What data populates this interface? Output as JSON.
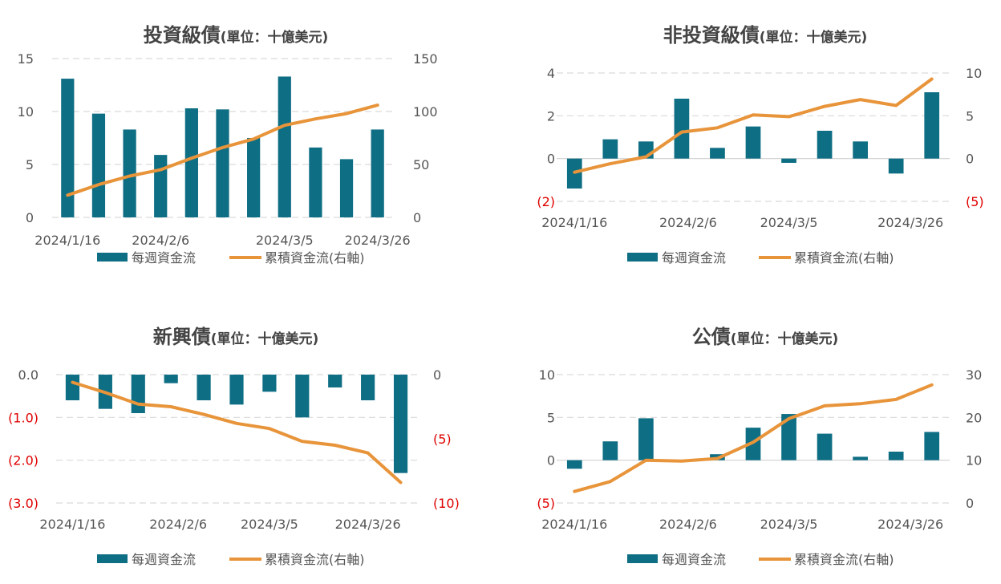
{
  "colors": {
    "bar": "#0e6e84",
    "line": "#e8943a",
    "grid": "#d9d9d9",
    "negative_tick": "#e00000"
  },
  "charts": [
    {
      "key": "c1",
      "title_main": "投資級債",
      "title_sub": "(單位：十億美元)",
      "legend_bar": "每週資金流",
      "legend_line": "累積資金流(右軸)",
      "x_tick_labels": [
        "2024/1/16",
        "2024/2/6",
        "2024/3/5",
        "2024/3/26"
      ],
      "left_ticks": [
        "15",
        "10",
        "5",
        "0"
      ],
      "right_ticks": [
        "150",
        "100",
        "50",
        "0"
      ]
    },
    {
      "key": "c2",
      "title_main": "非投資級債",
      "title_sub": "(單位：十億美元)",
      "legend_bar": "每週資金流",
      "legend_line": "累積資金流(右軸)",
      "x_tick_labels": [
        "2024/1/16",
        "2024/2/6",
        "2024/3/5",
        "2024/3/26"
      ],
      "left_ticks": [
        "4",
        "2",
        "0",
        "(2)"
      ],
      "right_ticks": [
        "10",
        "5",
        "0",
        "(5)"
      ]
    },
    {
      "key": "c3",
      "title_main": "新興債",
      "title_sub": "(單位：十億美元)",
      "legend_bar": "每週資金流",
      "legend_line": "累積資金流(右軸)",
      "x_tick_labels": [
        "2024/1/16",
        "2024/2/6",
        "2024/3/5",
        "2024/3/26"
      ],
      "left_ticks": [
        "0.0",
        "(1.0)",
        "(2.0)",
        "(3.0)"
      ],
      "right_ticks": [
        "0",
        "(5)",
        "(10)"
      ]
    },
    {
      "key": "c4",
      "title_main": "公債",
      "title_sub": "(單位：十億美元)",
      "legend_bar": "每週資金流",
      "legend_line": "累積資金流(右軸)",
      "x_tick_labels": [
        "2024/1/16",
        "2024/2/6",
        "2024/3/5",
        "2024/3/26"
      ],
      "left_ticks": [
        "10",
        "5",
        "0",
        "(5)"
      ],
      "right_ticks": [
        "30",
        "20",
        "10",
        "0"
      ]
    }
  ],
  "chart_data": [
    {
      "type": "bar",
      "title": "投資級債(單位：十億美元)",
      "x_tick_labels": [
        "2024/1/16",
        "2024/2/6",
        "2024/3/5",
        "2024/3/26"
      ],
      "series": [
        {
          "name": "每週資金流",
          "axis": "left",
          "type": "bar",
          "values": [
            13.1,
            9.8,
            8.3,
            5.9,
            10.3,
            10.2,
            7.5,
            13.3,
            6.6,
            5.5,
            8.3
          ]
        },
        {
          "name": "累積資金流(右軸)",
          "axis": "right",
          "type": "line",
          "values": [
            21,
            31,
            39,
            45,
            56,
            66,
            74,
            87,
            93,
            98,
            106
          ]
        }
      ],
      "ylim_left": [
        0,
        15
      ],
      "ylim_right": [
        0,
        150
      ],
      "grid": true,
      "legend": "bottom"
    },
    {
      "type": "bar",
      "title": "非投資級債(單位：十億美元)",
      "x_tick_labels": [
        "2024/1/16",
        "2024/2/6",
        "2024/3/5",
        "2024/3/26"
      ],
      "series": [
        {
          "name": "每週資金流",
          "axis": "left",
          "type": "bar",
          "values": [
            -1.4,
            0.9,
            0.8,
            2.8,
            0.5,
            1.5,
            -0.2,
            1.3,
            0.8,
            -0.7,
            3.1
          ]
        },
        {
          "name": "累積資金流(右軸)",
          "axis": "right",
          "type": "line",
          "values": [
            -1.6,
            -0.6,
            0.2,
            3.1,
            3.6,
            5.1,
            4.9,
            6.1,
            6.9,
            6.2,
            9.3
          ]
        }
      ],
      "ylim_left": [
        -2,
        4
      ],
      "ylim_right": [
        -5,
        10
      ],
      "grid": true,
      "legend": "bottom"
    },
    {
      "type": "bar",
      "title": "新興債(單位：十億美元)",
      "x_tick_labels": [
        "2024/1/16",
        "2024/2/6",
        "2024/3/5",
        "2024/3/26"
      ],
      "series": [
        {
          "name": "每週資金流",
          "axis": "left",
          "type": "bar",
          "values": [
            -0.6,
            -0.8,
            -0.9,
            -0.2,
            -0.6,
            -0.7,
            -0.4,
            -1.0,
            -0.3,
            -0.6,
            -2.3
          ]
        },
        {
          "name": "累積資金流(右軸)",
          "axis": "right",
          "type": "line",
          "values": [
            -0.6,
            -1.4,
            -2.3,
            -2.5,
            -3.1,
            -3.8,
            -4.2,
            -5.2,
            -5.5,
            -6.1,
            -8.4
          ]
        }
      ],
      "ylim_left": [
        -3,
        0
      ],
      "ylim_right": [
        -10,
        0
      ],
      "grid": true,
      "legend": "bottom"
    },
    {
      "type": "bar",
      "title": "公債(單位：十億美元)",
      "x_tick_labels": [
        "2024/1/16",
        "2024/2/6",
        "2024/3/5",
        "2024/3/26"
      ],
      "series": [
        {
          "name": "每週資金流",
          "axis": "left",
          "type": "bar",
          "values": [
            -1.0,
            2.2,
            4.9,
            0.0,
            0.7,
            3.8,
            5.4,
            3.1,
            0.4,
            1.0,
            3.3
          ]
        },
        {
          "name": "累積資金流(右軸)",
          "axis": "right",
          "type": "line",
          "values": [
            2.7,
            5.0,
            10.0,
            9.8,
            10.4,
            14.2,
            19.7,
            22.7,
            23.2,
            24.2,
            27.6
          ]
        }
      ],
      "ylim_left": [
        -5,
        10
      ],
      "ylim_right": [
        0,
        30
      ],
      "grid": true,
      "legend": "bottom"
    }
  ]
}
